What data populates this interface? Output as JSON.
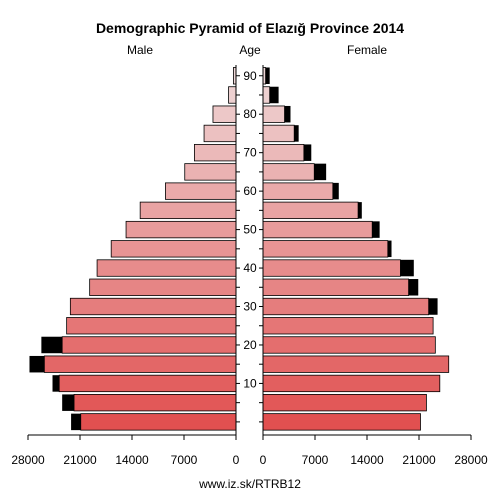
{
  "chart_data": {
    "type": "bar",
    "title": "Demographic Pyramid of Elazığ Province 2014",
    "left_label": "Male",
    "center_label": "Age",
    "right_label": "Female",
    "source": "www.iz.sk/RTRB12",
    "age_ticks": [
      "10",
      "20",
      "30",
      "40",
      "50",
      "60",
      "70",
      "80",
      "90"
    ],
    "x_ticks_male": [
      "28000",
      "21000",
      "14000",
      "7000",
      "0"
    ],
    "x_ticks_female": [
      "0",
      "7000",
      "14000",
      "21000",
      "28000"
    ],
    "xlim": [
      0,
      28000
    ],
    "age_groups": [
      "0-4",
      "5-9",
      "10-14",
      "15-19",
      "20-24",
      "25-29",
      "30-34",
      "35-39",
      "40-44",
      "45-49",
      "50-54",
      "55-59",
      "60-64",
      "65-69",
      "70-74",
      "75-79",
      "80-84",
      "85-89",
      "90+"
    ],
    "series": [
      {
        "name": "Male",
        "values": [
          20900,
          21800,
          23800,
          25800,
          23400,
          22800,
          22300,
          19700,
          18700,
          16800,
          14800,
          12900,
          9500,
          6900,
          5600,
          4300,
          3100,
          1000,
          350
        ]
      },
      {
        "name": "Male excess",
        "values": [
          1300,
          1600,
          900,
          2000,
          2800,
          0,
          0,
          0,
          0,
          0,
          0,
          0,
          0,
          0,
          0,
          0,
          0,
          0,
          0
        ]
      },
      {
        "name": "Female",
        "values": [
          21200,
          22000,
          23800,
          25000,
          23200,
          22900,
          22300,
          19600,
          18500,
          16800,
          14700,
          12800,
          9400,
          6900,
          5500,
          4200,
          2900,
          900,
          350
        ]
      },
      {
        "name": "Female excess",
        "values": [
          0,
          0,
          0,
          0,
          0,
          0,
          1200,
          1300,
          1800,
          500,
          1000,
          500,
          800,
          1600,
          1000,
          600,
          800,
          1200,
          550
        ]
      }
    ]
  }
}
